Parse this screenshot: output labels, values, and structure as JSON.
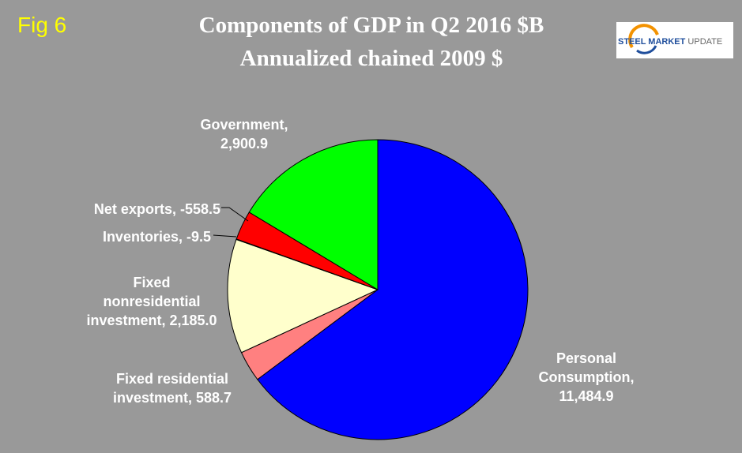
{
  "figure_label": "Fig 6",
  "logo": {
    "brand": "STEEL MARKET",
    "suffix": "UPDATE"
  },
  "chart_data": {
    "type": "pie",
    "title": "Components of GDP in Q2  2016 $B",
    "subtitle": "Annualized chained 2009 $",
    "values": [
      11484.9,
      588.7,
      2185.0,
      -9.5,
      -558.5,
      2900.9
    ],
    "value_labels": [
      "Personal Consumption, 11,484.9",
      "Fixed residential investment, 588.7",
      "Fixed nonresidential investment, 2,185.0",
      "Inventories, -9.5",
      "Net exports, -558.5",
      "Government, 2,900.9"
    ],
    "colors": [
      "#0000ff",
      "#ff8080",
      "#ffffcc",
      "#c0c0c0",
      "#ff0000",
      "#00ff00"
    ]
  }
}
